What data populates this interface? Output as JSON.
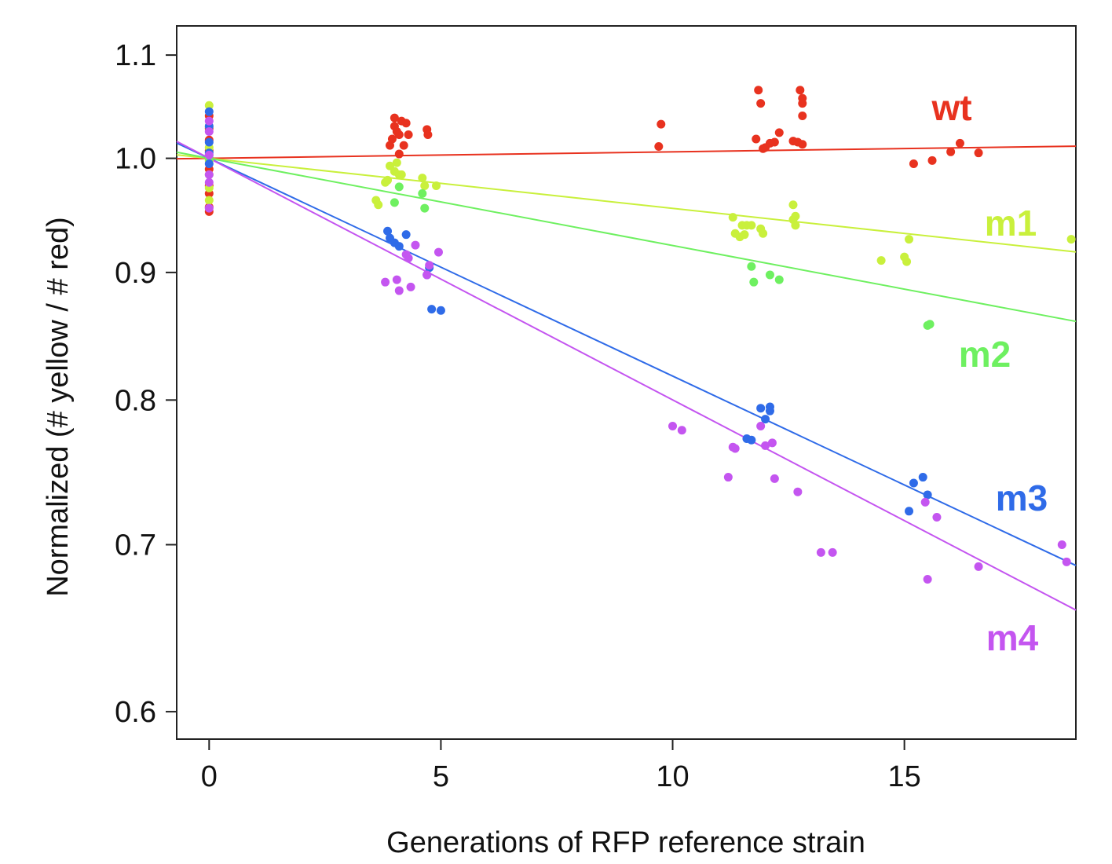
{
  "chart_data": {
    "type": "scatter",
    "title": "",
    "xlabel": "Generations of RFP reference strain",
    "ylabel": "Normalized (# yellow / # red)",
    "y_scale": "log",
    "xlim": [
      -0.7,
      18.7
    ],
    "ylim": [
      0.585,
      1.13
    ],
    "x_ticks": [
      0,
      5,
      10,
      15
    ],
    "x_tick_labels": [
      "0",
      "5",
      "10",
      "15"
    ],
    "y_ticks": [
      0.6,
      0.7,
      0.8,
      0.9,
      1.0,
      1.1
    ],
    "y_tick_labels": [
      "0.6",
      "0.7",
      "0.8",
      "0.9",
      "1.0",
      "1.1"
    ],
    "grid": false,
    "legend": "none",
    "series": [
      {
        "name": "wt",
        "color": "#e8321f",
        "fit": {
          "intercept": 1.0,
          "slope_log": 0.0006
        },
        "points": [
          [
            0,
            0.952
          ],
          [
            0,
            0.956
          ],
          [
            0,
            0.968
          ],
          [
            0,
            0.975
          ],
          [
            0,
            0.99
          ],
          [
            0,
            1.0
          ],
          [
            0,
            1.007
          ],
          [
            0,
            1.017
          ],
          [
            0,
            1.028
          ],
          [
            0,
            1.04
          ],
          [
            3.9,
            1.012
          ],
          [
            3.95,
            1.018
          ],
          [
            4.0,
            1.03
          ],
          [
            4.0,
            1.038
          ],
          [
            4.05,
            1.025
          ],
          [
            4.1,
            1.022
          ],
          [
            4.15,
            1.035
          ],
          [
            4.2,
            1.012
          ],
          [
            4.25,
            1.033
          ],
          [
            4.3,
            1.022
          ],
          [
            4.1,
            1.004
          ],
          [
            4.7,
            1.027
          ],
          [
            4.72,
            1.022
          ],
          [
            9.7,
            1.011
          ],
          [
            9.75,
            1.032
          ],
          [
            11.8,
            1.018
          ],
          [
            11.85,
            1.065
          ],
          [
            11.9,
            1.052
          ],
          [
            11.95,
            1.009
          ],
          [
            12.0,
            1.01
          ],
          [
            12.1,
            1.014
          ],
          [
            12.2,
            1.015
          ],
          [
            12.3,
            1.024
          ],
          [
            12.6,
            1.016
          ],
          [
            12.7,
            1.015
          ],
          [
            12.8,
            1.013
          ],
          [
            12.75,
            1.065
          ],
          [
            12.8,
            1.057
          ],
          [
            12.8,
            1.052
          ],
          [
            12.8,
            1.04
          ],
          [
            15.2,
            0.995
          ],
          [
            15.6,
            0.998
          ],
          [
            16.0,
            1.006
          ],
          [
            16.2,
            1.014
          ],
          [
            16.6,
            1.005
          ]
        ]
      },
      {
        "name": "m1",
        "color": "#c9f03c",
        "fit": {
          "intercept": 1.0,
          "slope_log": -0.00462
        },
        "points": [
          [
            0,
            0.962
          ],
          [
            0,
            0.973
          ],
          [
            0,
            0.985
          ],
          [
            0,
            0.998
          ],
          [
            0,
            1.01
          ],
          [
            0,
            1.03
          ],
          [
            0,
            1.05
          ],
          [
            3.6,
            0.962
          ],
          [
            3.65,
            0.958
          ],
          [
            3.8,
            0.978
          ],
          [
            3.85,
            0.98
          ],
          [
            3.9,
            0.993
          ],
          [
            4.0,
            0.988
          ],
          [
            4.05,
            0.996
          ],
          [
            4.1,
            0.985
          ],
          [
            4.15,
            0.985
          ],
          [
            4.6,
            0.982
          ],
          [
            4.65,
            0.975
          ],
          [
            4.9,
            0.975
          ],
          [
            11.3,
            0.947
          ],
          [
            11.35,
            0.933
          ],
          [
            11.45,
            0.93
          ],
          [
            11.5,
            0.94
          ],
          [
            11.55,
            0.932
          ],
          [
            11.6,
            0.94
          ],
          [
            11.7,
            0.94
          ],
          [
            11.9,
            0.937
          ],
          [
            11.95,
            0.933
          ],
          [
            12.6,
            0.945
          ],
          [
            12.6,
            0.958
          ],
          [
            12.65,
            0.94
          ],
          [
            12.65,
            0.948
          ],
          [
            14.5,
            0.91
          ],
          [
            15.0,
            0.913
          ],
          [
            15.05,
            0.909
          ],
          [
            15.1,
            0.928
          ],
          [
            18.6,
            0.928
          ]
        ]
      },
      {
        "name": "m2",
        "color": "#6ef060",
        "fit": {
          "intercept": 1.0,
          "slope_log": -0.00805
        },
        "points": [
          [
            0,
            1.0
          ],
          [
            0,
            1.003
          ],
          [
            4.1,
            0.974
          ],
          [
            4.0,
            0.96
          ],
          [
            4.6,
            0.968
          ],
          [
            4.65,
            0.955
          ],
          [
            11.7,
            0.905
          ],
          [
            11.75,
            0.892
          ],
          [
            12.1,
            0.898
          ],
          [
            12.3,
            0.894
          ],
          [
            15.5,
            0.857
          ],
          [
            15.55,
            0.858
          ]
        ]
      },
      {
        "name": "m3",
        "color": "#2f6be8",
        "fit": {
          "intercept": 1.0,
          "slope_log": -0.0201
        },
        "points": [
          [
            0,
            0.995
          ],
          [
            0,
            1.005
          ],
          [
            0,
            1.015
          ],
          [
            0,
            1.03
          ],
          [
            0,
            1.044
          ],
          [
            3.85,
            0.935
          ],
          [
            3.9,
            0.929
          ],
          [
            4.0,
            0.925
          ],
          [
            4.1,
            0.922
          ],
          [
            4.25,
            0.932
          ],
          [
            4.7,
            0.898
          ],
          [
            4.75,
            0.904
          ],
          [
            4.8,
            0.87
          ],
          [
            5.0,
            0.869
          ],
          [
            11.6,
            0.772
          ],
          [
            11.7,
            0.771
          ],
          [
            11.9,
            0.794
          ],
          [
            12.0,
            0.786
          ],
          [
            12.1,
            0.795
          ],
          [
            12.1,
            0.792
          ],
          [
            15.1,
            0.722
          ],
          [
            15.2,
            0.741
          ],
          [
            15.4,
            0.745
          ],
          [
            15.5,
            0.733
          ]
        ]
      },
      {
        "name": "m4",
        "color": "#c455f0",
        "fit": {
          "intercept": 1.0,
          "slope_log": -0.0223
        },
        "points": [
          [
            0,
            0.955
          ],
          [
            0,
            0.978
          ],
          [
            0,
            0.985
          ],
          [
            0,
            1.003
          ],
          [
            0,
            1.025
          ],
          [
            0,
            1.035
          ],
          [
            3.8,
            0.892
          ],
          [
            4.05,
            0.894
          ],
          [
            4.1,
            0.885
          ],
          [
            4.25,
            0.915
          ],
          [
            4.3,
            0.912
          ],
          [
            4.35,
            0.888
          ],
          [
            4.45,
            0.923
          ],
          [
            4.7,
            0.898
          ],
          [
            4.75,
            0.906
          ],
          [
            4.95,
            0.917
          ],
          [
            10.0,
            0.781
          ],
          [
            10.2,
            0.778
          ],
          [
            11.3,
            0.766
          ],
          [
            11.35,
            0.765
          ],
          [
            11.2,
            0.745
          ],
          [
            11.9,
            0.781
          ],
          [
            12.0,
            0.767
          ],
          [
            12.15,
            0.769
          ],
          [
            12.2,
            0.744
          ],
          [
            12.7,
            0.735
          ],
          [
            13.2,
            0.695
          ],
          [
            13.45,
            0.695
          ],
          [
            15.45,
            0.728
          ],
          [
            15.5,
            0.678
          ],
          [
            15.7,
            0.718
          ],
          [
            16.6,
            0.686
          ],
          [
            18.4,
            0.7
          ],
          [
            18.5,
            0.689
          ]
        ]
      }
    ]
  }
}
